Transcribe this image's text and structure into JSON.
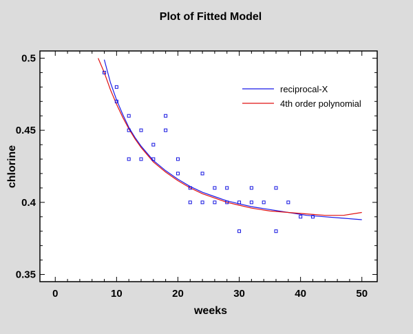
{
  "chart_data": {
    "type": "scatter",
    "title": "Plot of Fitted Model",
    "xlabel": "weeks",
    "ylabel": "chlorine",
    "xlim": [
      -2.5,
      52.5
    ],
    "ylim": [
      0.345,
      0.505
    ],
    "xticks": [
      0,
      10,
      20,
      30,
      40,
      50
    ],
    "xtick_labels": [
      "0",
      "10",
      "20",
      "30",
      "40",
      "50"
    ],
    "yticks": [
      0.35,
      0.4,
      0.45,
      0.5
    ],
    "ytick_labels": [
      "0.35",
      "0.4",
      "0.45",
      "0.5"
    ],
    "grid": false,
    "legend_position": "top-right",
    "points": {
      "color": "#1010e0",
      "x": [
        8,
        10,
        10,
        12,
        12,
        12,
        14,
        14,
        16,
        16,
        18,
        18,
        20,
        20,
        22,
        22,
        24,
        24,
        26,
        26,
        28,
        28,
        30,
        30,
        32,
        32,
        34,
        36,
        36,
        38,
        40,
        42
      ],
      "y": [
        0.49,
        0.48,
        0.47,
        0.46,
        0.45,
        0.43,
        0.45,
        0.43,
        0.44,
        0.43,
        0.46,
        0.45,
        0.43,
        0.42,
        0.41,
        0.4,
        0.42,
        0.4,
        0.41,
        0.4,
        0.41,
        0.4,
        0.4,
        0.38,
        0.41,
        0.4,
        0.4,
        0.41,
        0.38,
        0.4,
        0.39,
        0.39
      ]
    },
    "series": [
      {
        "name": "reciprocal-X",
        "color": "#1818e8",
        "x": [
          8,
          9,
          10,
          11,
          12,
          13,
          14,
          15,
          16,
          18,
          20,
          22,
          24,
          26,
          28,
          30,
          32,
          35,
          38,
          41,
          44,
          47,
          50
        ],
        "y": [
          0.499,
          0.483,
          0.471,
          0.461,
          0.452,
          0.445,
          0.439,
          0.434,
          0.429,
          0.422,
          0.416,
          0.411,
          0.407,
          0.404,
          0.401,
          0.399,
          0.397,
          0.395,
          0.393,
          0.391,
          0.39,
          0.389,
          0.388
        ]
      },
      {
        "name": "4th order polynomial",
        "color": "#e01010",
        "x": [
          7,
          8,
          9,
          10,
          11,
          12,
          13,
          14,
          15,
          16,
          18,
          20,
          22,
          24,
          26,
          28,
          30,
          32,
          35,
          38,
          41,
          44,
          47,
          50
        ],
        "y": [
          0.5,
          0.49,
          0.478,
          0.468,
          0.459,
          0.451,
          0.444,
          0.438,
          0.433,
          0.428,
          0.421,
          0.415,
          0.41,
          0.406,
          0.403,
          0.4,
          0.398,
          0.396,
          0.394,
          0.393,
          0.392,
          0.391,
          0.391,
          0.393
        ]
      }
    ]
  }
}
